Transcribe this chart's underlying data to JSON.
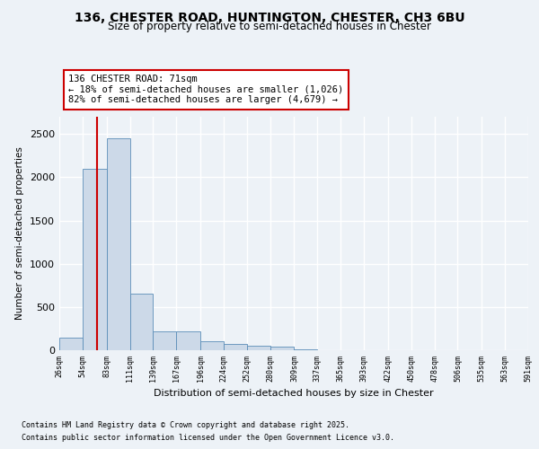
{
  "title_line1": "136, CHESTER ROAD, HUNTINGTON, CHESTER, CH3 6BU",
  "title_line2": "Size of property relative to semi-detached houses in Chester",
  "xlabel": "Distribution of semi-detached houses by size in Chester",
  "ylabel": "Number of semi-detached properties",
  "footer_line1": "Contains HM Land Registry data © Crown copyright and database right 2025.",
  "footer_line2": "Contains public sector information licensed under the Open Government Licence v3.0.",
  "annotation_title": "136 CHESTER ROAD: 71sqm",
  "annotation_line1": "← 18% of semi-detached houses are smaller (1,026)",
  "annotation_line2": "82% of semi-detached houses are larger (4,679) →",
  "property_size": 71,
  "bar_left_edges": [
    26,
    54,
    83,
    111,
    139,
    167,
    196,
    224,
    252,
    280,
    309,
    337,
    365,
    393,
    422,
    450,
    478,
    506,
    535,
    563
  ],
  "bar_widths": [
    28,
    29,
    28,
    28,
    28,
    29,
    28,
    28,
    28,
    29,
    28,
    28,
    28,
    29,
    28,
    28,
    28,
    29,
    28,
    28
  ],
  "bar_heights": [
    150,
    2100,
    2450,
    650,
    220,
    220,
    100,
    75,
    55,
    38,
    10,
    5,
    3,
    2,
    1,
    1,
    0,
    0,
    0,
    0
  ],
  "bar_color": "#ccd9e8",
  "bar_edge_color": "#5b8db8",
  "vline_color": "#cc0000",
  "vline_x": 71,
  "annotation_box_color": "#ffffff",
  "annotation_box_edge": "#cc0000",
  "ylim": [
    0,
    2700
  ],
  "yticks": [
    0,
    500,
    1000,
    1500,
    2000,
    2500
  ],
  "xlim": [
    26,
    591
  ],
  "xtick_labels": [
    "26sqm",
    "54sqm",
    "83sqm",
    "111sqm",
    "139sqm",
    "167sqm",
    "196sqm",
    "224sqm",
    "252sqm",
    "280sqm",
    "309sqm",
    "337sqm",
    "365sqm",
    "393sqm",
    "422sqm",
    "450sqm",
    "478sqm",
    "506sqm",
    "535sqm",
    "563sqm",
    "591sqm"
  ],
  "xtick_positions": [
    26,
    54,
    83,
    111,
    139,
    167,
    196,
    224,
    252,
    280,
    309,
    337,
    365,
    393,
    422,
    450,
    478,
    506,
    535,
    563,
    591
  ],
  "bg_color": "#edf2f7",
  "grid_color": "#ffffff",
  "title_fontsize": 10,
  "subtitle_fontsize": 8.5,
  "ylabel_fontsize": 7.5,
  "xlabel_fontsize": 8,
  "ytick_fontsize": 8,
  "xtick_fontsize": 6,
  "footer_fontsize": 6
}
